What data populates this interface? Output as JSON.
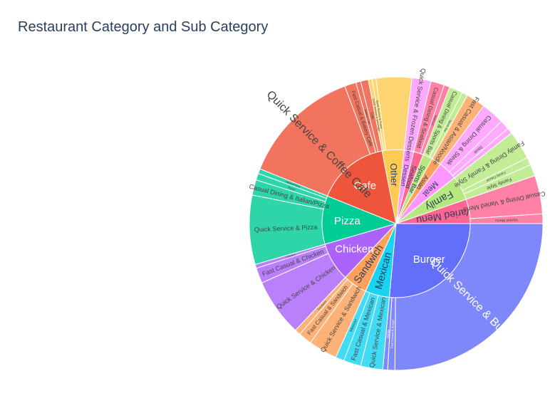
{
  "chart_data": {
    "type": "sunburst",
    "title": "Restaurant Category and Sub Category",
    "start_angle_deg": 90,
    "direction": "clockwise",
    "categories": [
      {
        "name": "Burger",
        "value": 0.25,
        "color": "#636EFA",
        "label_dir": "right",
        "children": [
          {
            "name": "Quick Service & Burger",
            "value": 0.2375
          },
          {
            "name": "Fast Casual & Burger",
            "value": 0.0075
          },
          {
            "name": "Burger",
            "value": 0.005
          }
        ]
      },
      {
        "name": "Mexican",
        "value": 0.05,
        "color": "#19D3F3",
        "children": [
          {
            "name": "Quick Service & Mexican",
            "value": 0.023
          },
          {
            "name": "Fast Casual & Mexican",
            "value": 0.018
          },
          {
            "name": "Mexican",
            "value": 0.009
          }
        ]
      },
      {
        "name": "Sandwich",
        "value": 0.05,
        "color": "#FFA15A",
        "children": [
          {
            "name": "Quick Service & Sandwich",
            "value": 0.03
          },
          {
            "name": "Fast Casual & Sandwich",
            "value": 0.014
          },
          {
            "name": "Sandwich",
            "value": 0.006
          }
        ]
      },
      {
        "name": "Chicken",
        "value": 0.08,
        "color": "#AB63FA",
        "children": [
          {
            "name": "Quick Service & Chicken",
            "value": 0.06
          },
          {
            "name": "Fast Casual & Chicken",
            "value": 0.016
          },
          {
            "name": "Chicken",
            "value": 0.004
          }
        ]
      },
      {
        "name": "Pizza",
        "value": 0.1,
        "color": "#00CC96",
        "children": [
          {
            "name": "Quick Service & Pizza",
            "value": 0.072
          },
          {
            "name": "Casual Dining & Italian/Pizza",
            "value": 0.016
          },
          {
            "name": "Pizza",
            "value": 0.007
          },
          {
            "name": "Italian/Pizza",
            "value": 0.005
          }
        ]
      },
      {
        "name": "Cafe",
        "value": 0.15,
        "color": "#EF553B",
        "children": [
          {
            "name": "Quick Service & Coffee Cafe",
            "value": 0.125
          },
          {
            "name": "Fast Casual & Bakery Cafe",
            "value": 0.012
          },
          {
            "name": "Bakery Cafe",
            "value": 0.005
          },
          {
            "name": "Cafe",
            "value": 0.008
          }
        ]
      },
      {
        "name": "Other",
        "value": 0.045,
        "color": "#FECB52",
        "children": [
          {
            "name": "Quick Service & Beverage",
            "value": 0.004
          },
          {
            "name": "Quick Service & Snack",
            "value": 0.004
          },
          {
            "name": "",
            "value": 0.037
          }
        ]
      },
      {
        "name": "Dessert",
        "value": 0.02,
        "color": "#FF97FF",
        "children": [
          {
            "name": "Quick Service & Frozen Desserts",
            "value": 0.02
          }
        ]
      },
      {
        "name": "Seafood",
        "value": 0.02,
        "color": "#FF6692",
        "children": [
          {
            "name": "Casual Dining & Seafood",
            "value": 0.014
          },
          {
            "name": "Seafood",
            "value": 0.006
          }
        ]
      },
      {
        "name": "Sports Bar",
        "value": 0.02,
        "color": "#B6E880",
        "children": [
          {
            "name": "Casual Dining & Sports Bar",
            "value": 0.014
          },
          {
            "name": "Sports Bar",
            "value": 0.006
          }
        ]
      },
      {
        "name": "Asian",
        "value": 0.02,
        "color": "#FFA15A",
        "children": [
          {
            "name": "Fast Casual & Asian/Noodle",
            "value": 0.02
          }
        ]
      },
      {
        "name": "Meat",
        "value": 0.04,
        "color": "#FF97FF",
        "children": [
          {
            "name": "Casual Dining & Steak",
            "value": 0.024
          },
          {
            "name": "Steak",
            "value": 0.01
          },
          {
            "name": "",
            "value": 0.006
          }
        ]
      },
      {
        "name": "Family",
        "value": 0.05,
        "color": "#B6E880",
        "children": [
          {
            "name": "Family Dining & Family Style",
            "value": 0.03
          },
          {
            "name": "Family Casual",
            "value": 0.008
          },
          {
            "name": "Family Style",
            "value": 0.012
          }
        ]
      },
      {
        "name": "Varied Menu",
        "value": 0.05,
        "color": "#FF6692",
        "children": [
          {
            "name": "Casual Dining & Varied Menu",
            "value": 0.04
          },
          {
            "name": "Varied Menu",
            "value": 0.01
          }
        ]
      }
    ]
  }
}
